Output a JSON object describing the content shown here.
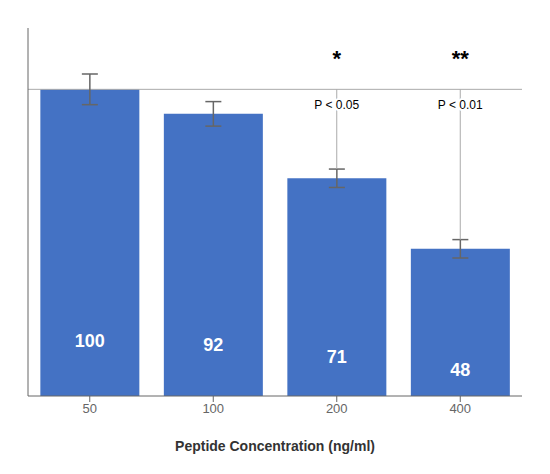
{
  "chart_data": {
    "type": "bar",
    "categories": [
      "50",
      "100",
      "200",
      "400"
    ],
    "values": [
      100,
      92,
      71,
      48
    ],
    "errors": [
      5,
      4,
      3,
      3
    ],
    "color": "#4472C4",
    "xlabel": "Peptide Concentration (ng/ml)",
    "ylim": [
      0,
      120
    ],
    "data_labels": true,
    "tick_labels": "x",
    "reference_line": {
      "y": 100,
      "color": "#aaaaaa"
    },
    "annotations": [
      {
        "category": "200",
        "symbol": "*",
        "text": "P < 0.05",
        "symbol_y": 110,
        "text_y": 97
      },
      {
        "category": "400",
        "symbol": "**",
        "text": "P < 0.01",
        "symbol_y": 110,
        "text_y": 97
      }
    ]
  }
}
